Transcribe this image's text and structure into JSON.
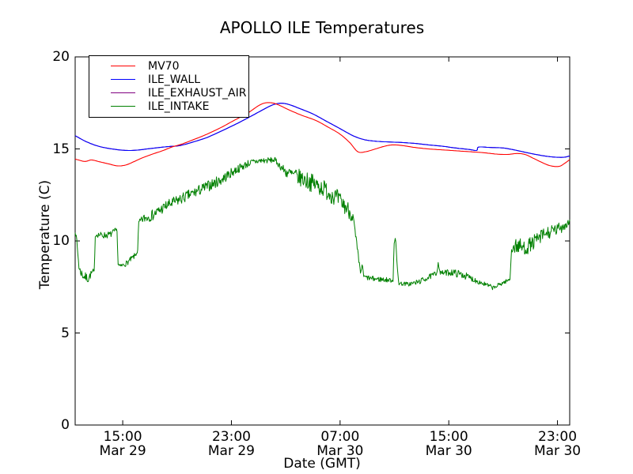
{
  "chart_data": {
    "type": "line",
    "title": "APOLLO ILE Temperatures",
    "xlabel": "Date (GMT)",
    "ylabel": "Temperature (C)",
    "ylim": [
      0,
      20
    ],
    "yticks": [
      0,
      5,
      10,
      15,
      20
    ],
    "x_unit": "hours_since_Mar29_0000_GMT",
    "xlim_hours": [
      11.5,
      47.9
    ],
    "xticks": [
      {
        "hour": 15,
        "time": "15:00",
        "date": "Mar 29"
      },
      {
        "hour": 23,
        "time": "23:00",
        "date": "Mar 29"
      },
      {
        "hour": 31,
        "time": "07:00",
        "date": "Mar 30"
      },
      {
        "hour": 39,
        "time": "15:00",
        "date": "Mar 30"
      },
      {
        "hour": 47,
        "time": "23:00",
        "date": "Mar 30"
      }
    ],
    "grid": false,
    "legend_position": "upper-left",
    "series": [
      {
        "name": "MV70",
        "color": "#ff0000",
        "style": "smooth",
        "points": [
          [
            11.5,
            14.45
          ],
          [
            12.2,
            14.32
          ],
          [
            12.7,
            14.4
          ],
          [
            13.3,
            14.3
          ],
          [
            14.0,
            14.18
          ],
          [
            14.6,
            14.08
          ],
          [
            15.2,
            14.12
          ],
          [
            15.8,
            14.3
          ],
          [
            16.4,
            14.5
          ],
          [
            17.2,
            14.72
          ],
          [
            18.0,
            14.92
          ],
          [
            18.6,
            15.1
          ],
          [
            19.3,
            15.25
          ],
          [
            20.2,
            15.5
          ],
          [
            21.2,
            15.8
          ],
          [
            22.2,
            16.15
          ],
          [
            23.2,
            16.55
          ],
          [
            24.2,
            16.95
          ],
          [
            25.0,
            17.35
          ],
          [
            25.5,
            17.5
          ],
          [
            26.0,
            17.5
          ],
          [
            26.5,
            17.38
          ],
          [
            27.3,
            17.1
          ],
          [
            28.2,
            16.82
          ],
          [
            29.2,
            16.55
          ],
          [
            30.2,
            16.15
          ],
          [
            31.0,
            15.8
          ],
          [
            31.7,
            15.35
          ],
          [
            32.3,
            14.85
          ],
          [
            32.9,
            14.85
          ],
          [
            33.6,
            15.0
          ],
          [
            34.3,
            15.15
          ],
          [
            34.9,
            15.22
          ],
          [
            35.6,
            15.18
          ],
          [
            36.5,
            15.08
          ],
          [
            37.5,
            15.0
          ],
          [
            38.5,
            14.95
          ],
          [
            39.5,
            14.9
          ],
          [
            40.5,
            14.85
          ],
          [
            41.5,
            14.8
          ],
          [
            42.5,
            14.72
          ],
          [
            43.3,
            14.7
          ],
          [
            44.0,
            14.75
          ],
          [
            44.6,
            14.7
          ],
          [
            45.2,
            14.5
          ],
          [
            45.9,
            14.25
          ],
          [
            46.5,
            14.08
          ],
          [
            47.1,
            14.05
          ],
          [
            47.5,
            14.2
          ],
          [
            47.9,
            14.42
          ]
        ]
      },
      {
        "name": "ILE_WALL",
        "color": "#0000ff",
        "style": "smooth",
        "points": [
          [
            11.5,
            15.72
          ],
          [
            12.3,
            15.4
          ],
          [
            13.2,
            15.15
          ],
          [
            14.2,
            15.0
          ],
          [
            15.2,
            14.92
          ],
          [
            16.0,
            14.93
          ],
          [
            16.8,
            15.0
          ],
          [
            17.6,
            15.07
          ],
          [
            18.4,
            15.13
          ],
          [
            19.2,
            15.18
          ],
          [
            20.2,
            15.38
          ],
          [
            21.2,
            15.62
          ],
          [
            22.2,
            15.95
          ],
          [
            23.2,
            16.3
          ],
          [
            24.2,
            16.68
          ],
          [
            25.2,
            17.08
          ],
          [
            26.0,
            17.38
          ],
          [
            26.6,
            17.48
          ],
          [
            27.2,
            17.42
          ],
          [
            28.0,
            17.2
          ],
          [
            29.0,
            16.9
          ],
          [
            30.0,
            16.5
          ],
          [
            31.0,
            16.1
          ],
          [
            32.0,
            15.7
          ],
          [
            32.8,
            15.5
          ],
          [
            33.6,
            15.42
          ],
          [
            34.5,
            15.38
          ],
          [
            35.5,
            15.35
          ],
          [
            36.5,
            15.3
          ],
          [
            37.5,
            15.22
          ],
          [
            38.5,
            15.15
          ],
          [
            39.5,
            15.05
          ],
          [
            40.5,
            14.97
          ],
          [
            41.05,
            14.92
          ],
          [
            41.2,
            15.1
          ],
          [
            42.0,
            15.08
          ],
          [
            43.0,
            15.05
          ],
          [
            43.8,
            14.95
          ],
          [
            44.6,
            14.82
          ],
          [
            45.4,
            14.7
          ],
          [
            46.2,
            14.6
          ],
          [
            46.9,
            14.55
          ],
          [
            47.5,
            14.55
          ],
          [
            47.9,
            14.62
          ]
        ]
      },
      {
        "name": "ILE_EXHAUST_AIR",
        "color": "#800080",
        "style": "smooth",
        "hidden_behind": "ILE_WALL",
        "points": []
      },
      {
        "name": "ILE_INTAKE",
        "color": "#008000",
        "style": "noisy",
        "points_tvn": [
          [
            11.5,
            10.55,
            0.1
          ],
          [
            11.62,
            10.0,
            0.15
          ],
          [
            11.8,
            8.45,
            0.25
          ],
          [
            12.1,
            8.1,
            0.25
          ],
          [
            12.45,
            7.95,
            0.25
          ],
          [
            12.8,
            8.35,
            0.15
          ],
          [
            12.92,
            8.3,
            0.08
          ],
          [
            12.97,
            10.3,
            0.08
          ],
          [
            13.1,
            10.35,
            0.15
          ],
          [
            13.6,
            10.3,
            0.18
          ],
          [
            14.1,
            10.35,
            0.18
          ],
          [
            14.45,
            10.55,
            0.15
          ],
          [
            14.58,
            10.6,
            0.08
          ],
          [
            14.65,
            8.75,
            0.08
          ],
          [
            14.8,
            8.6,
            0.12
          ],
          [
            15.3,
            8.8,
            0.15
          ],
          [
            15.9,
            9.2,
            0.15
          ],
          [
            16.1,
            9.45,
            0.1
          ],
          [
            16.17,
            11.0,
            0.1
          ],
          [
            16.5,
            11.2,
            0.25
          ],
          [
            17.2,
            11.4,
            0.3
          ],
          [
            18.2,
            11.9,
            0.3
          ],
          [
            19.2,
            12.25,
            0.3
          ],
          [
            20.2,
            12.6,
            0.3
          ],
          [
            21.2,
            12.95,
            0.3
          ],
          [
            22.2,
            13.3,
            0.3
          ],
          [
            23.2,
            13.8,
            0.25
          ],
          [
            24.2,
            14.2,
            0.2
          ],
          [
            25.0,
            14.35,
            0.18
          ],
          [
            26.2,
            14.4,
            0.15
          ],
          [
            26.55,
            14.1,
            0.18
          ],
          [
            27.0,
            13.75,
            0.3
          ],
          [
            27.8,
            13.5,
            0.45
          ],
          [
            28.8,
            13.2,
            0.5
          ],
          [
            29.8,
            12.85,
            0.5
          ],
          [
            30.8,
            12.3,
            0.5
          ],
          [
            31.6,
            11.7,
            0.45
          ],
          [
            31.95,
            11.3,
            0.35
          ],
          [
            32.25,
            9.6,
            0.25
          ],
          [
            32.5,
            8.25,
            0.15
          ],
          [
            32.62,
            8.7,
            0.12
          ],
          [
            32.75,
            8.05,
            0.12
          ],
          [
            33.3,
            7.95,
            0.15
          ],
          [
            34.2,
            7.9,
            0.15
          ],
          [
            34.9,
            7.85,
            0.1
          ],
          [
            34.97,
            9.9,
            0.08
          ],
          [
            35.08,
            10.2,
            0.08
          ],
          [
            35.2,
            8.6,
            0.1
          ],
          [
            35.32,
            7.7,
            0.1
          ],
          [
            36.0,
            7.65,
            0.12
          ],
          [
            36.7,
            7.75,
            0.15
          ],
          [
            37.6,
            8.05,
            0.15
          ],
          [
            38.1,
            8.25,
            0.15
          ],
          [
            38.22,
            8.8,
            0.06
          ],
          [
            38.38,
            8.25,
            0.12
          ],
          [
            39.2,
            8.3,
            0.2
          ],
          [
            40.1,
            8.15,
            0.2
          ],
          [
            41.0,
            7.85,
            0.15
          ],
          [
            41.8,
            7.6,
            0.13
          ],
          [
            42.3,
            7.45,
            0.12
          ],
          [
            42.9,
            7.7,
            0.12
          ],
          [
            43.5,
            7.9,
            0.1
          ],
          [
            43.62,
            9.55,
            0.2
          ],
          [
            44.0,
            9.75,
            0.45
          ],
          [
            44.6,
            9.6,
            0.42
          ],
          [
            45.2,
            9.9,
            0.4
          ],
          [
            46.0,
            10.35,
            0.38
          ],
          [
            46.8,
            10.55,
            0.35
          ],
          [
            47.5,
            10.85,
            0.3
          ],
          [
            47.9,
            11.05,
            0.25
          ]
        ]
      }
    ]
  }
}
